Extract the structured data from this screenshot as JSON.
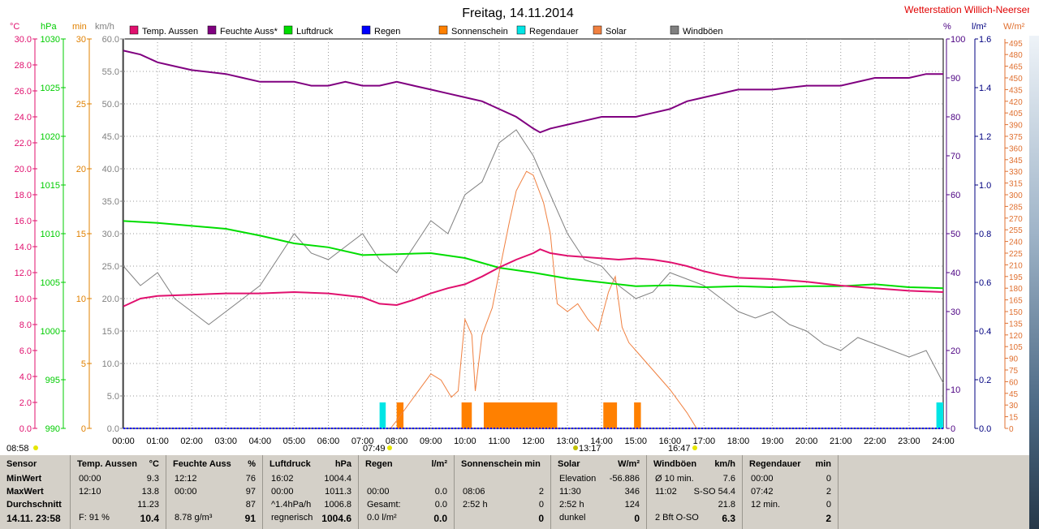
{
  "title": "Freitag, 14.11.2014",
  "station": "Wetterstation Willich-Neersen",
  "left_units": {
    "temp": "°C",
    "pressure": "hPa",
    "minutes": "min",
    "wind": "km/h"
  },
  "right_units": {
    "humidity": "%",
    "rain": "l/m²",
    "solar": "W/m²"
  },
  "legend": [
    {
      "label": "Temp. Aussen",
      "color": "#e0106e"
    },
    {
      "label": "Feuchte Auss*",
      "color": "#800080"
    },
    {
      "label": "Luftdruck",
      "color": "#00dd00"
    },
    {
      "label": "Regen",
      "color": "#0000ff"
    },
    {
      "label": "Sonnenschein",
      "color": "#ff8000"
    },
    {
      "label": "Regendauer",
      "color": "#00e5e5"
    },
    {
      "label": "Solar",
      "color": "#f08040"
    },
    {
      "label": "Windböen",
      "color": "#808080"
    }
  ],
  "time_markers": [
    {
      "label": "08:58",
      "color": "#e6e600"
    },
    {
      "label": "07:49",
      "color": "#e6e600"
    },
    {
      "label": "13:17",
      "color": "#c0c000"
    },
    {
      "label": "16:47",
      "color": "#e6e600"
    }
  ],
  "chart_data": {
    "type": "line",
    "x_unit": "hour",
    "x_ticks": [
      "00:00",
      "01:00",
      "02:00",
      "03:00",
      "04:00",
      "05:00",
      "06:00",
      "07:00",
      "08:00",
      "09:00",
      "10:00",
      "11:00",
      "12:00",
      "13:00",
      "14:00",
      "15:00",
      "16:00",
      "17:00",
      "18:00",
      "19:00",
      "20:00",
      "21:00",
      "22:00",
      "23:00",
      "24:00"
    ],
    "axes": {
      "temp": {
        "label": "°C",
        "range": [
          0,
          30
        ],
        "ticks": [
          "0.0",
          "2.0",
          "4.0",
          "6.0",
          "8.0",
          "10.0",
          "12.0",
          "14.0",
          "16.0",
          "18.0",
          "20.0",
          "22.0",
          "24.0",
          "26.0",
          "28.0",
          "30.0"
        ],
        "color": "#e0106e"
      },
      "pressure": {
        "label": "hPa",
        "range": [
          990,
          1030
        ],
        "ticks": [
          "990",
          "995",
          "1000",
          "1005",
          "1010",
          "1015",
          "1020",
          "1025",
          "1030"
        ],
        "color": "#00cc00"
      },
      "minutes": {
        "label": "min",
        "range": [
          0,
          30
        ],
        "ticks": [
          "0",
          "5",
          "10",
          "15",
          "20",
          "25",
          "30"
        ],
        "color": "#e08000"
      },
      "wind": {
        "label": "km/h",
        "range": [
          0,
          60
        ],
        "ticks": [
          "0.0",
          "5.0",
          "10.0",
          "15.0",
          "20.0",
          "25.0",
          "30.0",
          "35.0",
          "40.0",
          "45.0",
          "50.0",
          "55.0",
          "60.0"
        ],
        "color": "#808080"
      },
      "humidity": {
        "label": "%",
        "range": [
          0,
          100
        ],
        "ticks": [
          "0",
          "10",
          "20",
          "30",
          "40",
          "50",
          "60",
          "70",
          "80",
          "90",
          "100"
        ],
        "color": "#4b0082"
      },
      "rain": {
        "label": "l/m²",
        "range": [
          0,
          1.6
        ],
        "ticks": [
          "0.0",
          "0.2",
          "0.4",
          "0.6",
          "0.8",
          "1.0",
          "1.2",
          "1.4",
          "1.6"
        ],
        "color": "#000080"
      },
      "solar": {
        "label": "W/m²",
        "range": [
          0,
          500
        ],
        "ticks": [
          "0",
          "15",
          "30",
          "45",
          "60",
          "75",
          "90",
          "105",
          "120",
          "135",
          "150",
          "165",
          "180",
          "195",
          "210",
          "225",
          "240",
          "255",
          "270",
          "285",
          "300",
          "315",
          "330",
          "345",
          "360",
          "375",
          "390",
          "405",
          "420",
          "435",
          "450",
          "465",
          "480",
          "495"
        ],
        "color": "#e07030"
      }
    },
    "series": [
      {
        "name": "Temp. Aussen",
        "axis": "temp",
        "color": "#e0106e",
        "points": [
          [
            0,
            9.4
          ],
          [
            0.5,
            10.0
          ],
          [
            1,
            10.2
          ],
          [
            2,
            10.3
          ],
          [
            3,
            10.4
          ],
          [
            4,
            10.4
          ],
          [
            5,
            10.5
          ],
          [
            6,
            10.4
          ],
          [
            7,
            10.1
          ],
          [
            7.5,
            9.6
          ],
          [
            8,
            9.5
          ],
          [
            8.5,
            9.9
          ],
          [
            9,
            10.4
          ],
          [
            9.5,
            10.8
          ],
          [
            10,
            11.1
          ],
          [
            10.5,
            11.7
          ],
          [
            11,
            12.4
          ],
          [
            11.5,
            13.0
          ],
          [
            12,
            13.5
          ],
          [
            12.2,
            13.8
          ],
          [
            12.5,
            13.5
          ],
          [
            13,
            13.3
          ],
          [
            14,
            13.1
          ],
          [
            14.5,
            13.0
          ],
          [
            15,
            13.1
          ],
          [
            15.5,
            13.0
          ],
          [
            16,
            12.8
          ],
          [
            16.5,
            12.5
          ],
          [
            17,
            12.1
          ],
          [
            17.5,
            11.8
          ],
          [
            18,
            11.6
          ],
          [
            19,
            11.5
          ],
          [
            20,
            11.3
          ],
          [
            21,
            11.0
          ],
          [
            22,
            10.8
          ],
          [
            23,
            10.6
          ],
          [
            24,
            10.5
          ]
        ]
      },
      {
        "name": "Feuchte Auss*",
        "axis": "humidity",
        "color": "#800080",
        "points": [
          [
            0,
            97
          ],
          [
            0.5,
            96
          ],
          [
            1,
            94
          ],
          [
            1.5,
            93
          ],
          [
            2,
            92
          ],
          [
            3,
            91
          ],
          [
            3.5,
            90
          ],
          [
            4,
            89
          ],
          [
            5,
            89
          ],
          [
            5.5,
            88
          ],
          [
            6,
            88
          ],
          [
            6.5,
            89
          ],
          [
            7,
            88
          ],
          [
            7.5,
            88
          ],
          [
            8,
            89
          ],
          [
            8.5,
            88
          ],
          [
            9,
            87
          ],
          [
            9.5,
            86
          ],
          [
            10,
            85
          ],
          [
            10.5,
            84
          ],
          [
            11,
            82
          ],
          [
            11.5,
            80
          ],
          [
            12,
            77
          ],
          [
            12.2,
            76
          ],
          [
            12.5,
            77
          ],
          [
            13,
            78
          ],
          [
            13.5,
            79
          ],
          [
            14,
            80
          ],
          [
            15,
            80
          ],
          [
            15.5,
            81
          ],
          [
            16,
            82
          ],
          [
            16.5,
            84
          ],
          [
            17,
            85
          ],
          [
            17.5,
            86
          ],
          [
            18,
            87
          ],
          [
            19,
            87
          ],
          [
            20,
            88
          ],
          [
            21,
            88
          ],
          [
            22,
            90
          ],
          [
            23,
            90
          ],
          [
            23.5,
            91
          ],
          [
            24,
            91
          ]
        ]
      },
      {
        "name": "Luftdruck",
        "axis": "pressure",
        "color": "#00dd00",
        "points": [
          [
            0,
            1011.3
          ],
          [
            1,
            1011.1
          ],
          [
            2,
            1010.8
          ],
          [
            3,
            1010.5
          ],
          [
            4,
            1009.8
          ],
          [
            5,
            1009.0
          ],
          [
            6,
            1008.6
          ],
          [
            7,
            1007.8
          ],
          [
            8,
            1007.9
          ],
          [
            9,
            1008.0
          ],
          [
            10,
            1007.5
          ],
          [
            11,
            1006.5
          ],
          [
            12,
            1006.0
          ],
          [
            13,
            1005.4
          ],
          [
            14,
            1005.0
          ],
          [
            15,
            1004.6
          ],
          [
            16,
            1004.7
          ],
          [
            17,
            1004.5
          ],
          [
            18,
            1004.6
          ],
          [
            19,
            1004.5
          ],
          [
            20,
            1004.6
          ],
          [
            21,
            1004.6
          ],
          [
            22,
            1004.8
          ],
          [
            23,
            1004.5
          ],
          [
            24,
            1004.4
          ]
        ]
      },
      {
        "name": "Regen",
        "axis": "rain",
        "color": "#0000ff",
        "points": [
          [
            0,
            0
          ],
          [
            24,
            0
          ]
        ]
      },
      {
        "name": "Solar",
        "axis": "solar",
        "color": "#f08040",
        "points": [
          [
            7.82,
            0
          ],
          [
            8,
            10
          ],
          [
            8.5,
            40
          ],
          [
            9,
            70
          ],
          [
            9.3,
            62
          ],
          [
            9.6,
            40
          ],
          [
            9.8,
            48
          ],
          [
            10,
            140
          ],
          [
            10.2,
            120
          ],
          [
            10.3,
            48
          ],
          [
            10.5,
            120
          ],
          [
            10.8,
            155
          ],
          [
            11,
            200
          ],
          [
            11.3,
            265
          ],
          [
            11.5,
            305
          ],
          [
            11.8,
            330
          ],
          [
            12,
            325
          ],
          [
            12.3,
            290
          ],
          [
            12.5,
            250
          ],
          [
            12.7,
            160
          ],
          [
            13,
            150
          ],
          [
            13.3,
            160
          ],
          [
            13.6,
            140
          ],
          [
            13.9,
            125
          ],
          [
            14.2,
            175
          ],
          [
            14.4,
            195
          ],
          [
            14.6,
            130
          ],
          [
            14.8,
            110
          ],
          [
            15,
            100
          ],
          [
            15.5,
            75
          ],
          [
            16,
            50
          ],
          [
            16.5,
            20
          ],
          [
            16.78,
            0
          ]
        ]
      },
      {
        "name": "Windböen",
        "axis": "wind",
        "color": "#808080",
        "points": [
          [
            0,
            25
          ],
          [
            0.5,
            22
          ],
          [
            1,
            24
          ],
          [
            1.5,
            20
          ],
          [
            2,
            18
          ],
          [
            2.5,
            16
          ],
          [
            3,
            18
          ],
          [
            3.5,
            20
          ],
          [
            4,
            22
          ],
          [
            4.5,
            26
          ],
          [
            5,
            30
          ],
          [
            5.5,
            27
          ],
          [
            6,
            26
          ],
          [
            6.5,
            28
          ],
          [
            7,
            30
          ],
          [
            7.5,
            26
          ],
          [
            8,
            24
          ],
          [
            8.5,
            28
          ],
          [
            9,
            32
          ],
          [
            9.5,
            30
          ],
          [
            10,
            36
          ],
          [
            10.5,
            38
          ],
          [
            11,
            44
          ],
          [
            11.5,
            46
          ],
          [
            12,
            42
          ],
          [
            12.5,
            36
          ],
          [
            13,
            30
          ],
          [
            13.5,
            26
          ],
          [
            14,
            25
          ],
          [
            14.5,
            22
          ],
          [
            15,
            20
          ],
          [
            15.5,
            21
          ],
          [
            16,
            24
          ],
          [
            16.5,
            23
          ],
          [
            17,
            22
          ],
          [
            17.5,
            20
          ],
          [
            18,
            18
          ],
          [
            18.5,
            17
          ],
          [
            19,
            18
          ],
          [
            19.5,
            16
          ],
          [
            20,
            15
          ],
          [
            20.5,
            13
          ],
          [
            21,
            12
          ],
          [
            21.5,
            14
          ],
          [
            22,
            13
          ],
          [
            22.5,
            12
          ],
          [
            23,
            11
          ],
          [
            23.5,
            12
          ],
          [
            24,
            7
          ]
        ]
      }
    ],
    "bars": [
      {
        "name": "Sonnenschein",
        "axis": "minutes",
        "color": "#ff8000",
        "intervals": [
          [
            8.0,
            8.2,
            2
          ],
          [
            9.9,
            10.2,
            2
          ],
          [
            10.55,
            12.7,
            2
          ],
          [
            14.05,
            14.45,
            2
          ],
          [
            14.95,
            15.15,
            2
          ]
        ]
      },
      {
        "name": "Regendauer",
        "axis": "minutes",
        "color": "#00e5e5",
        "intervals": [
          [
            7.5,
            7.68,
            2
          ],
          [
            23.8,
            24,
            2
          ]
        ]
      }
    ]
  },
  "table": {
    "sensor": {
      "header": "Sensor",
      "rows": [
        "MinWert",
        "MaxWert",
        "Durchschnitt",
        "14.11. 23:58"
      ]
    },
    "temp": {
      "header": "Temp. Aussen",
      "unit": "°C",
      "rows": [
        [
          "00:00",
          "9.3"
        ],
        [
          "12:10",
          "13.8"
        ],
        [
          "",
          "11.23"
        ],
        [
          "F: 91 %",
          "10.4"
        ]
      ]
    },
    "humidity": {
      "header": "Feuchte Auss",
      "unit": "%",
      "rows": [
        [
          "12:12",
          "76"
        ],
        [
          "00:00",
          "97"
        ],
        [
          "",
          "87"
        ],
        [
          "8.78 g/m³",
          "91"
        ]
      ]
    },
    "pressure": {
      "header": "Luftdruck",
      "unit": "hPa",
      "rows": [
        [
          "16:02",
          "1004.4"
        ],
        [
          "00:00",
          "1011.3"
        ],
        [
          "^1.4hPa/h",
          "1006.8"
        ],
        [
          "regnerisch",
          "1004.6"
        ]
      ]
    },
    "rain": {
      "header": "Regen",
      "unit": "l/m²",
      "rows": [
        [
          "",
          ""
        ],
        [
          "00:00",
          "0.0"
        ],
        [
          "Gesamt:",
          "0.0"
        ],
        [
          "0.0 l/m²",
          "0.0"
        ]
      ]
    },
    "sunshine": {
      "header": "Sonnenschein min",
      "rows": [
        [
          "",
          ""
        ],
        [
          "08:06",
          "2"
        ],
        [
          "2:52 h",
          "0"
        ],
        [
          "",
          "0"
        ]
      ]
    },
    "solar": {
      "header": "Solar",
      "unit": "W/m²",
      "rows": [
        [
          "Elevation",
          "-56.886"
        ],
        [
          "11:30",
          "346"
        ],
        [
          "2:52 h",
          "124"
        ],
        [
          "dunkel",
          "0"
        ]
      ]
    },
    "wind": {
      "header": "Windböen",
      "unit": "km/h",
      "rows": [
        [
          "Ø 10 min.",
          "7.6"
        ],
        [
          "11:02",
          "S-SO 54.4"
        ],
        [
          "",
          "21.8"
        ],
        [
          "2 Bft O-SO",
          "6.3"
        ]
      ]
    },
    "rain_duration": {
      "header": "Regendauer",
      "unit": "min",
      "rows": [
        [
          "00:00",
          "0"
        ],
        [
          "07:42",
          "2"
        ],
        [
          "12 min.",
          "0"
        ],
        [
          "",
          "2"
        ]
      ]
    }
  }
}
